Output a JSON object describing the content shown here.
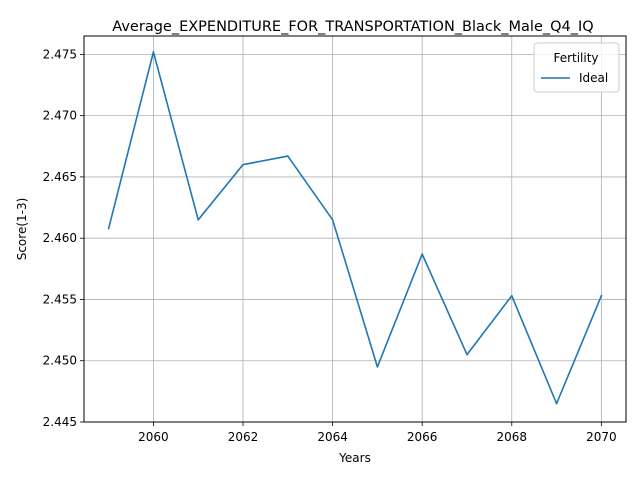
{
  "chart_data": {
    "type": "line",
    "title": "Average_EXPENDITURE_FOR_TRANSPORTATION_Black_Male_Q4_IQ",
    "xlabel": "Years",
    "ylabel": "Score(1-3)",
    "xlim": [
      2058.45,
      2070.55
    ],
    "ylim": [
      2.445,
      2.4765
    ],
    "x_ticks": [
      2060,
      2062,
      2064,
      2066,
      2068,
      2070
    ],
    "y_ticks": [
      2.445,
      2.45,
      2.455,
      2.46,
      2.465,
      2.47,
      2.475
    ],
    "y_tick_labels": [
      "2.445",
      "2.450",
      "2.455",
      "2.460",
      "2.465",
      "2.470",
      "2.475"
    ],
    "grid": true,
    "legend": {
      "title": "Fertility",
      "placement": "top-right"
    },
    "series": [
      {
        "name": "Ideal",
        "color": "#1f77b4",
        "x": [
          2059,
          2060,
          2061,
          2062,
          2063,
          2064,
          2065,
          2066,
          2067,
          2068,
          2069,
          2070
        ],
        "values": [
          2.4608,
          2.4752,
          2.4615,
          2.466,
          2.4667,
          2.4615,
          2.4495,
          2.4587,
          2.4505,
          2.4553,
          2.4465,
          2.4553
        ]
      }
    ]
  }
}
